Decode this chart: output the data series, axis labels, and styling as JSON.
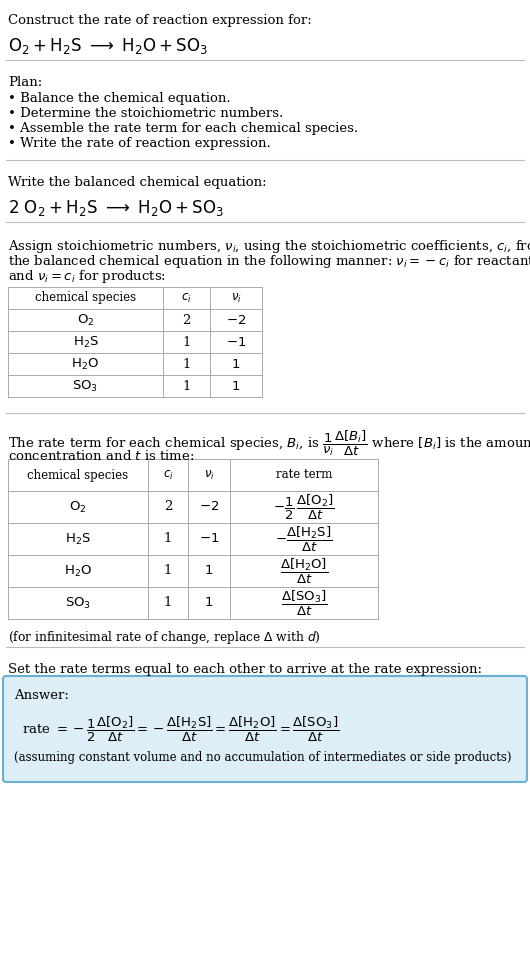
{
  "bg_color": "#ffffff",
  "text_color": "#000000",
  "title_text": "Construct the rate of reaction expression for:",
  "plan_header": "Plan:",
  "plan_items": [
    "• Balance the chemical equation.",
    "• Determine the stoichiometric numbers.",
    "• Assemble the rate term for each chemical species.",
    "• Write the rate of reaction expression."
  ],
  "section2_header": "Write the balanced chemical equation:",
  "section5_header": "Set the rate terms equal to each other to arrive at the rate expression:",
  "answer_box_color": "#ddeef6",
  "answer_box_border": "#6aafd4",
  "answer_label": "Answer:",
  "answer_note": "(assuming constant volume and no accumulation of intermediates or side products)"
}
